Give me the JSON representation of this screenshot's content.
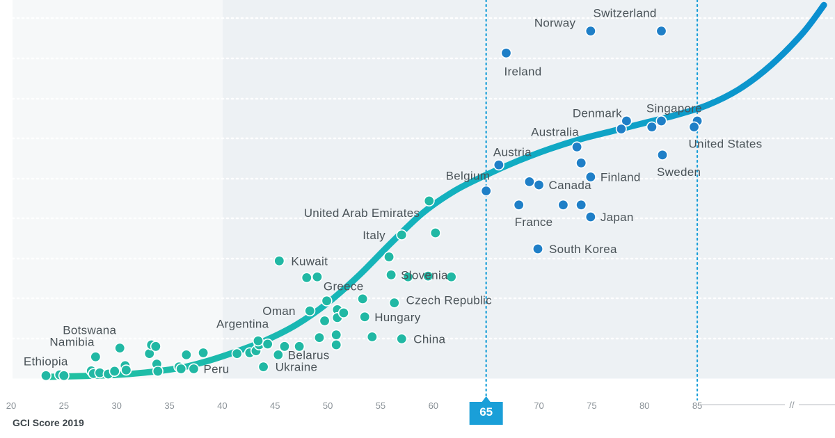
{
  "chart_data": {
    "type": "scatter",
    "xlabel": "GCI Score 2019",
    "x_ticks": [
      "20",
      "25",
      "30",
      "35",
      "40",
      "45",
      "50",
      "55",
      "60",
      "65",
      "70",
      "75",
      "80",
      "85"
    ],
    "highlight_ticks": [
      "65",
      "85"
    ],
    "highlight_marker": "65",
    "axis_break": "//",
    "colors": {
      "low": "#21b8a4",
      "high": "#1f7fc7",
      "curve_start": "#22c1a0",
      "curve_end": "#0a8ed0",
      "band": "#edf1f4",
      "marker": "#1a9fd8"
    },
    "labeled_points": [
      {
        "name": "Ethiopia",
        "x": 25.0,
        "y": 0.3
      },
      {
        "name": "Namibia",
        "x": 28.0,
        "y": 5.0
      },
      {
        "name": "Botswana",
        "x": 30.3,
        "y": 7.2
      },
      {
        "name": "Peru",
        "x": 37.3,
        "y": 2.0
      },
      {
        "name": "Argentina",
        "x": 43.4,
        "y": 9.0
      },
      {
        "name": "Ukraine",
        "x": 43.9,
        "y": 2.5
      },
      {
        "name": "Belarus",
        "x": 45.3,
        "y": 5.5
      },
      {
        "name": "Kuwait",
        "x": 45.4,
        "y": 29.0
      },
      {
        "name": "Greece",
        "x": 49.0,
        "y": 25.0
      },
      {
        "name": "Oman",
        "x": 48.3,
        "y": 16.5
      },
      {
        "name": "Hungary",
        "x": 53.5,
        "y": 15.0
      },
      {
        "name": "Czech Republic",
        "x": 56.3,
        "y": 18.5
      },
      {
        "name": "China",
        "x": 57.0,
        "y": 9.5
      },
      {
        "name": "Slovenia",
        "x": 56.0,
        "y": 25.5
      },
      {
        "name": "Italy",
        "x": 57.0,
        "y": 35.5
      },
      {
        "name": "United Arab Emirates",
        "x": 59.6,
        "y": 44.0
      },
      {
        "name": "Belgium",
        "x": 65.0,
        "y": 46.5
      },
      {
        "name": "Austria",
        "x": 66.2,
        "y": 53.0
      },
      {
        "name": "Australia",
        "x": 73.6,
        "y": 57.5
      },
      {
        "name": "Denmark",
        "x": 77.8,
        "y": 62.0
      },
      {
        "name": "Singapore",
        "x": 80.7,
        "y": 62.5
      },
      {
        "name": "United States",
        "x": 84.7,
        "y": 62.5
      },
      {
        "name": "Sweden",
        "x": 81.7,
        "y": 55.5
      },
      {
        "name": "Finland",
        "x": 74.9,
        "y": 50.0
      },
      {
        "name": "Canada",
        "x": 70.0,
        "y": 48.0
      },
      {
        "name": "France",
        "x": 68.1,
        "y": 43.0
      },
      {
        "name": "Japan",
        "x": 74.9,
        "y": 40.0
      },
      {
        "name": "South Korea",
        "x": 69.9,
        "y": 32.0
      },
      {
        "name": "Ireland",
        "x": 66.9,
        "y": 81.0
      },
      {
        "name": "Norway",
        "x": 74.9,
        "y": 86.5
      },
      {
        "name": "Switzerland",
        "x": 81.6,
        "y": 86.5
      }
    ],
    "unlabeled_points": [
      [
        23.3,
        0.3
      ],
      [
        24.6,
        0.5
      ],
      [
        27.6,
        1.5
      ],
      [
        27.8,
        0.8
      ],
      [
        28.4,
        1.0
      ],
      [
        29.2,
        0.7
      ],
      [
        29.8,
        1.4
      ],
      [
        30.8,
        2.8
      ],
      [
        30.9,
        1.7
      ],
      [
        33.1,
        5.8
      ],
      [
        33.3,
        8.0
      ],
      [
        33.7,
        7.6
      ],
      [
        33.8,
        3.2
      ],
      [
        33.9,
        1.4
      ],
      [
        35.9,
        2.5
      ],
      [
        36.1,
        2.0
      ],
      [
        36.6,
        5.5
      ],
      [
        38.2,
        6.0
      ],
      [
        41.4,
        5.8
      ],
      [
        42.6,
        6.0
      ],
      [
        43.2,
        6.5
      ],
      [
        43.5,
        8.0
      ],
      [
        44.3,
        8.2
      ],
      [
        45.9,
        7.6
      ],
      [
        47.3,
        7.6
      ],
      [
        48.0,
        24.8
      ],
      [
        49.2,
        9.8
      ],
      [
        49.7,
        14.0
      ],
      [
        49.9,
        19.0
      ],
      [
        50.8,
        10.5
      ],
      [
        50.8,
        8.0
      ],
      [
        50.9,
        16.8
      ],
      [
        50.9,
        14.8
      ],
      [
        51.5,
        16.0
      ],
      [
        53.3,
        19.5
      ],
      [
        54.2,
        10.0
      ],
      [
        55.8,
        30.0
      ],
      [
        57.6,
        25.0
      ],
      [
        59.5,
        25.2
      ],
      [
        60.2,
        36.0
      ],
      [
        61.7,
        25.0
      ],
      [
        69.1,
        48.8
      ],
      [
        72.3,
        43.0
      ],
      [
        74.0,
        43.0
      ],
      [
        74.0,
        53.5
      ],
      [
        78.3,
        64.0
      ],
      [
        81.6,
        64.0
      ],
      [
        85.0,
        64.0
      ]
    ],
    "curve": [
      [
        23.3,
        0.0
      ],
      [
        30,
        0.5
      ],
      [
        35,
        1.8
      ],
      [
        38,
        3.5
      ],
      [
        41,
        6.0
      ],
      [
        44,
        9.0
      ],
      [
        47,
        13.0
      ],
      [
        50,
        18.5
      ],
      [
        53,
        25.5
      ],
      [
        56,
        33.5
      ],
      [
        59,
        41.0
      ],
      [
        62,
        46.5
      ],
      [
        65,
        50.5
      ],
      [
        68,
        54.0
      ],
      [
        71,
        57.0
      ],
      [
        74,
        59.5
      ],
      [
        77,
        61.5
      ],
      [
        80,
        63.5
      ],
      [
        83,
        65.5
      ],
      [
        86,
        68.0
      ],
      [
        89,
        72.0
      ],
      [
        92,
        78.0
      ],
      [
        95,
        86.0
      ],
      [
        97,
        93.0
      ]
    ]
  }
}
